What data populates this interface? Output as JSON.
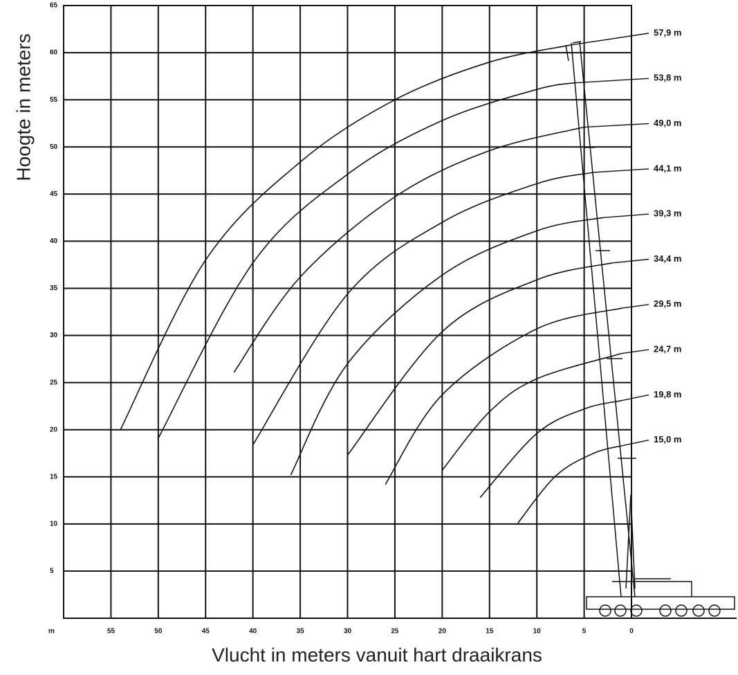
{
  "chart_data": {
    "type": "line",
    "x_label": "Vlucht in meters vanuit hart draaikrans",
    "y_label": "Hoogte in meters",
    "x_unit_label": "m",
    "xlim": [
      60,
      0
    ],
    "ylim": [
      0,
      65
    ],
    "xticks": [
      55,
      50,
      45,
      40,
      35,
      30,
      25,
      20,
      15,
      10,
      5,
      0
    ],
    "yticks": [
      5,
      10,
      15,
      20,
      25,
      30,
      35,
      40,
      45,
      50,
      55,
      60,
      65
    ],
    "grid": true,
    "color": "#111111",
    "series": [
      {
        "name": "57,9 m",
        "x": [
          54,
          45,
          35,
          25,
          15,
          6.5
        ],
        "values": [
          20.0,
          38.0,
          48.4,
          55.0,
          59.0,
          60.8
        ]
      },
      {
        "name": "53,8 m",
        "x": [
          50,
          40,
          30,
          20,
          10,
          6
        ],
        "values": [
          19.1,
          37.7,
          47.1,
          52.8,
          56.1,
          56.8
        ]
      },
      {
        "name": "49,0 m",
        "x": [
          42,
          35,
          25,
          15,
          5
        ],
        "values": [
          26.1,
          36.2,
          44.7,
          49.6,
          52.1
        ]
      },
      {
        "name": "44,1 m",
        "x": [
          40,
          30,
          20,
          10,
          4
        ],
        "values": [
          18.4,
          34.4,
          42.0,
          46.1,
          47.3
        ]
      },
      {
        "name": "39,3 m",
        "x": [
          36,
          30,
          20,
          10,
          3
        ],
        "values": [
          15.2,
          27.0,
          36.4,
          41.1,
          42.5
        ]
      },
      {
        "name": "34,4 m",
        "x": [
          30,
          20,
          10,
          2
        ],
        "values": [
          17.3,
          30.4,
          35.9,
          37.7
        ]
      },
      {
        "name": "29,5 m",
        "x": [
          26,
          20,
          10,
          1
        ],
        "values": [
          14.2,
          23.7,
          30.7,
          32.9
        ]
      },
      {
        "name": "24,7 m",
        "x": [
          20,
          15,
          10,
          1
        ],
        "values": [
          15.7,
          21.9,
          25.4,
          28.1
        ]
      },
      {
        "name": "19,8 m",
        "x": [
          16,
          10,
          5,
          1
        ],
        "values": [
          12.8,
          19.6,
          22.2,
          23.1
        ]
      },
      {
        "name": "15,0 m",
        "x": [
          12,
          8,
          4,
          1
        ],
        "values": [
          10.1,
          15.1,
          17.5,
          18.3
        ]
      }
    ]
  }
}
